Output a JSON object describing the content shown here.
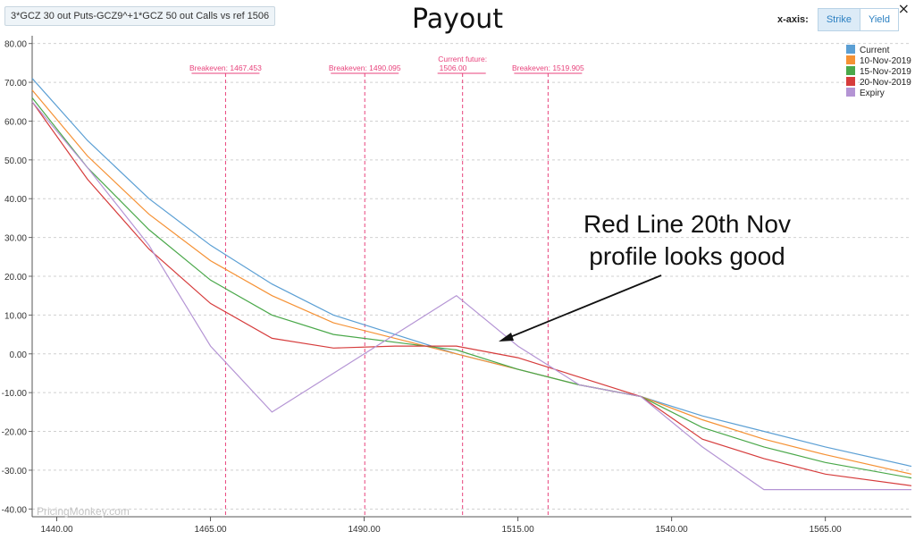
{
  "header": {
    "strategy_label": "3*GCZ 30 out Puts-GCZ9^+1*GCZ 50 out Calls vs ref 1506",
    "title": "Payout",
    "close_icon": "×",
    "xaxis_label": "x-axis:",
    "xaxis_options": [
      "Strike",
      "Yield"
    ],
    "xaxis_selected": "Strike"
  },
  "watermark": "PricingMonkey.com",
  "annotation": {
    "line1": "Red Line 20th Nov",
    "line2": "profile looks good"
  },
  "colors": {
    "current": "#5b9fd4",
    "nov10": "#f59134",
    "nov15": "#4aa84a",
    "nov20": "#d63c3c",
    "expiry": "#b494d4",
    "marker": "#e8437c"
  },
  "chart_data": {
    "type": "line",
    "title": "Payout",
    "xlim": [
      1436,
      1579
    ],
    "ylim": [
      -42,
      82
    ],
    "x_ticks": [
      1440,
      1465,
      1490,
      1515,
      1540,
      1565
    ],
    "x_tick_labels": [
      "1440.00",
      "1465.00",
      "1490.00",
      "1515.00",
      "1540.00",
      "1565.00"
    ],
    "y_ticks": [
      80,
      70,
      60,
      50,
      40,
      30,
      20,
      10,
      0,
      -10,
      -20,
      -30,
      -40
    ],
    "y_tick_labels": [
      "80.00",
      "70.00",
      "60.00",
      "50.00",
      "40.00",
      "30.00",
      "20.00",
      "10.00",
      "0.00",
      "-10.00",
      "-20.00",
      "-30.00",
      "-40.00"
    ],
    "grid": true,
    "legend_position": "top-right",
    "x": [
      1436,
      1445,
      1455,
      1465,
      1475,
      1485,
      1495,
      1505,
      1515,
      1525,
      1535,
      1545,
      1555,
      1565,
      1579
    ],
    "series": [
      {
        "name": "Current",
        "values": [
          71,
          55,
          40,
          28,
          18,
          10,
          5,
          0,
          -4,
          -8,
          -11,
          -16,
          -20,
          -24,
          -29
        ]
      },
      {
        "name": "10-Nov-2019",
        "values": [
          68,
          51,
          36,
          24,
          15,
          8,
          4,
          0,
          -4,
          -8,
          -11,
          -17,
          -22,
          -26,
          -31
        ]
      },
      {
        "name": "15-Nov-2019",
        "values": [
          66,
          48,
          32,
          19,
          10,
          5,
          3,
          1,
          -4,
          -8,
          -11,
          -19,
          -24,
          -28,
          -32
        ]
      },
      {
        "name": "20-Nov-2019",
        "values": [
          65,
          45,
          27,
          13,
          4,
          1.5,
          2,
          2,
          -1,
          -6,
          -11,
          -22,
          -27,
          -31,
          -34
        ]
      },
      {
        "name": "Expiry",
        "values": [
          65,
          48,
          28,
          2,
          -15,
          -5,
          5,
          15,
          2,
          -8,
          -11,
          -24,
          -35,
          -35,
          -35
        ]
      }
    ],
    "vertical_markers": [
      {
        "x": 1467.453,
        "label": "Breakeven: 1467.453"
      },
      {
        "x": 1490.095,
        "label": "Breakeven: 1490.095"
      },
      {
        "x": 1506.0,
        "label_line1": "Current future:",
        "label_line2": "1506.00"
      },
      {
        "x": 1519.905,
        "label": "Breakeven: 1519.905"
      }
    ]
  }
}
